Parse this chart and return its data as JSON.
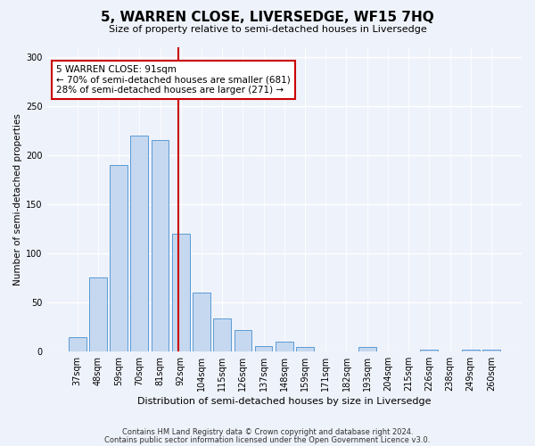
{
  "title": "5, WARREN CLOSE, LIVERSEDGE, WF15 7HQ",
  "subtitle": "Size of property relative to semi-detached houses in Liversedge",
  "xlabel": "Distribution of semi-detached houses by size in Liversedge",
  "ylabel": "Number of semi-detached properties",
  "categories": [
    "37sqm",
    "48sqm",
    "59sqm",
    "70sqm",
    "81sqm",
    "92sqm",
    "104sqm",
    "115sqm",
    "126sqm",
    "137sqm",
    "148sqm",
    "159sqm",
    "171sqm",
    "182sqm",
    "193sqm",
    "204sqm",
    "215sqm",
    "226sqm",
    "238sqm",
    "249sqm",
    "260sqm"
  ],
  "values": [
    14,
    75,
    190,
    220,
    215,
    120,
    60,
    33,
    22,
    5,
    10,
    4,
    0,
    0,
    4,
    0,
    0,
    2,
    0,
    2,
    2
  ],
  "bar_color": "#c5d8f0",
  "bar_edge_color": "#5b9bd5",
  "property_line_color": "#cc0000",
  "annotation_box_color": "#ffffff",
  "annotation_box_edge_color": "#cc0000",
  "property_label": "5 WARREN CLOSE: 91sqm",
  "pct_smaller": "70% of semi-detached houses are smaller (681)",
  "pct_larger": "28% of semi-detached houses are larger (271)",
  "ylim": [
    0,
    310
  ],
  "yticks": [
    0,
    50,
    100,
    150,
    200,
    250,
    300
  ],
  "footer1": "Contains HM Land Registry data © Crown copyright and database right 2024.",
  "footer2": "Contains public sector information licensed under the Open Government Licence v3.0.",
  "background_color": "#eef2fa",
  "grid_color": "#ffffff",
  "title_fontsize": 11,
  "subtitle_fontsize": 8,
  "ylabel_fontsize": 7.5,
  "xlabel_fontsize": 8,
  "tick_fontsize": 7,
  "annotation_fontsize": 7.5,
  "footer_fontsize": 6
}
